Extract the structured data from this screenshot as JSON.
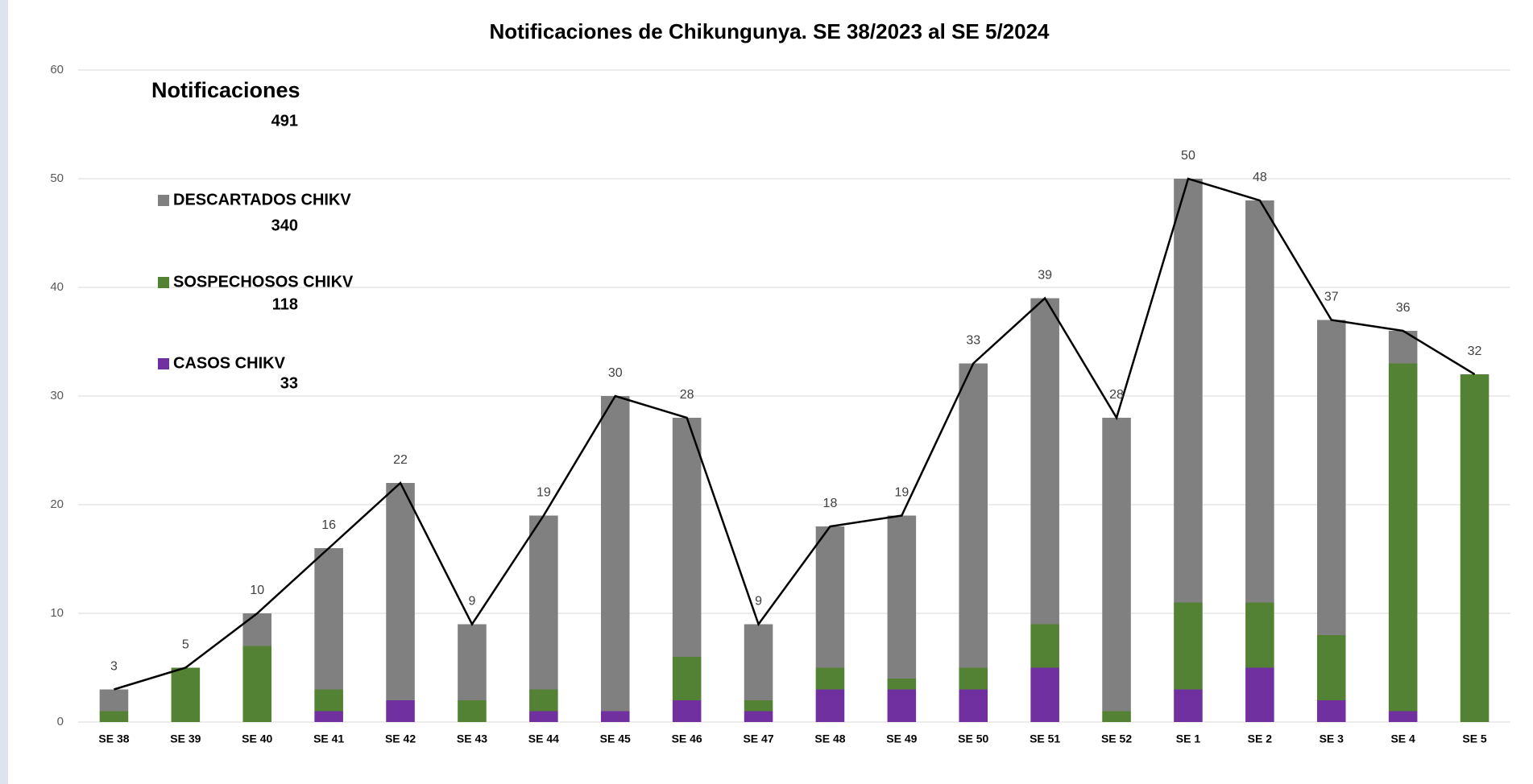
{
  "chart_data": {
    "type": "stacked_bar_line",
    "title": "Notificaciones de Chikungunya. SE 38/2023 al SE 5/2024",
    "categories": [
      "SE 38",
      "SE 39",
      "SE 40",
      "SE 41",
      "SE 42",
      "SE 43",
      "SE 44",
      "SE 45",
      "SE 46",
      "SE 47",
      "SE 48",
      "SE 49",
      "SE 50",
      "SE 51",
      "SE 52",
      "SE  1",
      "SE  2",
      "SE  3",
      "SE  4",
      "SE  5"
    ],
    "series": [
      {
        "name": "CASOS CHIKV",
        "color": "#7030a0",
        "total": 33,
        "values": [
          0,
          0,
          0,
          1,
          2,
          0,
          1,
          1,
          2,
          1,
          3,
          3,
          3,
          5,
          0,
          3,
          5,
          2,
          1,
          0
        ]
      },
      {
        "name": "SOSPECHOSOS CHIKV",
        "color": "#548235",
        "total": 118,
        "values": [
          1,
          5,
          7,
          2,
          0,
          2,
          2,
          0,
          4,
          1,
          2,
          1,
          2,
          4,
          1,
          8,
          6,
          6,
          32,
          32
        ]
      },
      {
        "name": "DESCARTADOS CHIKV",
        "color": "#808080",
        "total": 340,
        "values": [
          2,
          0,
          3,
          13,
          20,
          7,
          16,
          29,
          22,
          7,
          13,
          15,
          28,
          30,
          27,
          39,
          37,
          29,
          3,
          0
        ]
      }
    ],
    "line": {
      "name": "Notificaciones",
      "color": "#000000",
      "total": 491,
      "values": [
        3,
        5,
        10,
        16,
        22,
        9,
        19,
        30,
        28,
        9,
        18,
        19,
        33,
        39,
        28,
        50,
        48,
        37,
        36,
        32
      ]
    },
    "ylim": [
      0,
      60
    ],
    "yticks": [
      0,
      10,
      20,
      30,
      40,
      50,
      60
    ],
    "grid": true
  }
}
